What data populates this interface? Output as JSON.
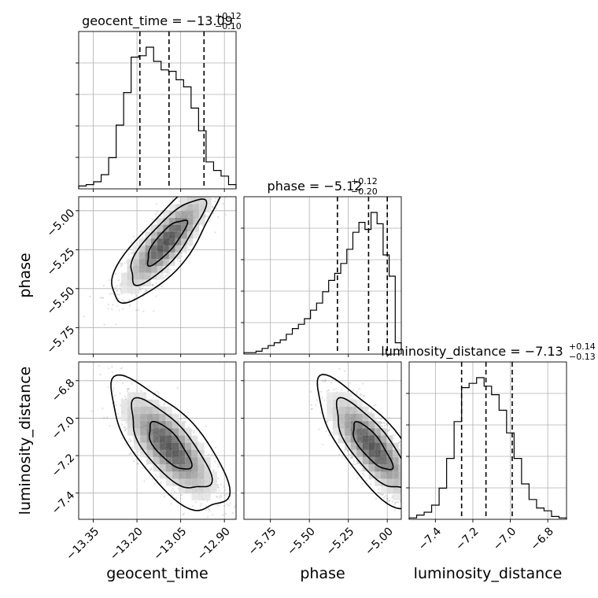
{
  "chart_data": {
    "type": "corner",
    "parameters": [
      "geocent_time",
      "phase",
      "luminosity_distance"
    ],
    "labels": {
      "geocent_time": "geocent_time",
      "phase": "phase",
      "luminosity_distance": "luminosity_distance"
    },
    "titles": [
      {
        "param": "geocent_time",
        "text": "geocent_time = −13.09",
        "sup": "+0.12",
        "sub": "−0.10"
      },
      {
        "param": "phase",
        "text": "phase = −5.12",
        "sup": "+0.12",
        "sub": "−0.20"
      },
      {
        "param": "luminosity_distance",
        "text": "luminosity_distance = −7.13",
        "sup": "+0.14",
        "sub": "−0.13"
      }
    ],
    "ranges": {
      "geocent_time": [
        -13.4,
        -12.86
      ],
      "phase": [
        -5.92,
        -4.91
      ],
      "luminosity_distance": [
        -7.54,
        -6.7
      ]
    },
    "ticks": {
      "geocent_time": [
        -13.35,
        -13.2,
        -13.05,
        -12.9
      ],
      "phase": [
        -5.75,
        -5.5,
        -5.25,
        -5.0
      ],
      "luminosity_distance": [
        -7.4,
        -7.2,
        -7.0,
        -6.8
      ]
    },
    "tick_labels": {
      "geocent_time": [
        "−13.35",
        "−13.20",
        "−13.05",
        "−12.90"
      ],
      "phase": [
        "−5.75",
        "−5.50",
        "−5.25",
        "−5.00"
      ],
      "luminosity_distance": [
        "−7.4",
        "−7.2",
        "−7.0",
        "−6.8"
      ]
    },
    "quantiles": {
      "geocent_time": [
        -13.19,
        -13.09,
        -12.97
      ],
      "phase": [
        -5.32,
        -5.12,
        -5.0
      ],
      "luminosity_distance": [
        -7.26,
        -7.13,
        -6.99
      ]
    },
    "histograms": {
      "geocent_time": [
        2,
        3,
        5,
        10,
        22,
        45,
        68,
        93,
        94,
        100,
        90,
        84,
        83,
        77,
        72,
        57,
        41,
        19,
        13,
        9,
        3
      ],
      "phase": [
        1,
        1,
        2,
        4,
        6,
        8,
        10,
        14,
        18,
        21,
        25,
        31,
        36,
        44,
        52,
        57,
        64,
        74,
        86,
        93,
        88,
        100,
        92,
        70,
        55,
        8
      ],
      "luminosity_distance": [
        1,
        3,
        5,
        10,
        22,
        43,
        69,
        93,
        96,
        100,
        94,
        88,
        77,
        61,
        43,
        25,
        14,
        8,
        6,
        2,
        1
      ]
    },
    "grid": true,
    "contour_levels": 3
  }
}
